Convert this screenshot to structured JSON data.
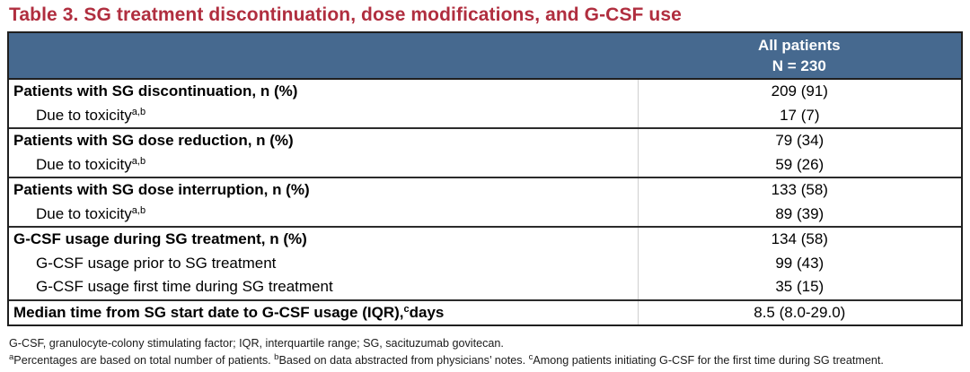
{
  "title": "Table 3. SG treatment discontinuation, dose modifications, and G-CSF use",
  "colors": {
    "title_accent": "#B02E3F",
    "header_background": "#46698F",
    "header_text": "#FFFFFF",
    "table_border": "#1F1F1F",
    "group_separator": "#2B2B2B",
    "column_divider": "#CFCFCF"
  },
  "table": {
    "header": {
      "line1": "All patients",
      "line2": "N = 230"
    },
    "groups": [
      {
        "rows": [
          {
            "bold": true,
            "indent": false,
            "label_parts": [
              {
                "t": "Patients with SG discontinuation, n (%)"
              }
            ],
            "value": "209 (91)"
          },
          {
            "bold": false,
            "indent": true,
            "label_parts": [
              {
                "t": "Due to toxicity"
              },
              {
                "t": "a,b",
                "sup": true
              }
            ],
            "value": "17 (7)"
          }
        ]
      },
      {
        "rows": [
          {
            "bold": true,
            "indent": false,
            "label_parts": [
              {
                "t": "Patients with SG dose reduction, n (%)"
              }
            ],
            "value": "79 (34)"
          },
          {
            "bold": false,
            "indent": true,
            "label_parts": [
              {
                "t": "Due to toxicity"
              },
              {
                "t": "a,b",
                "sup": true
              }
            ],
            "value": "59 (26)"
          }
        ]
      },
      {
        "rows": [
          {
            "bold": true,
            "indent": false,
            "label_parts": [
              {
                "t": "Patients with SG dose interruption, n (%)"
              }
            ],
            "value": "133 (58)"
          },
          {
            "bold": false,
            "indent": true,
            "label_parts": [
              {
                "t": "Due to toxicity"
              },
              {
                "t": "a,b",
                "sup": true
              }
            ],
            "value": "89 (39)"
          }
        ]
      },
      {
        "rows": [
          {
            "bold": true,
            "indent": false,
            "label_parts": [
              {
                "t": "G-CSF usage during SG treatment, n (%)"
              }
            ],
            "value": "134 (58)"
          },
          {
            "bold": false,
            "indent": true,
            "label_parts": [
              {
                "t": "G-CSF usage prior to SG treatment"
              }
            ],
            "value": "99 (43)"
          },
          {
            "bold": false,
            "indent": true,
            "label_parts": [
              {
                "t": "G-CSF usage first time during SG treatment"
              }
            ],
            "value": "35 (15)"
          }
        ]
      },
      {
        "rows": [
          {
            "bold": true,
            "indent": false,
            "label_parts": [
              {
                "t": "Median time from SG start date to G-CSF usage (IQR),"
              },
              {
                "t": "c",
                "sup": true
              },
              {
                "t": " days"
              }
            ],
            "value": "8.5 (8.0-29.0)"
          }
        ]
      }
    ]
  },
  "footnotes": [
    {
      "parts": [
        {
          "t": "G-CSF, granulocyte-colony stimulating factor; IQR, interquartile range; SG, sacituzumab govitecan."
        }
      ]
    },
    {
      "parts": [
        {
          "t": "a",
          "sup": true
        },
        {
          "t": "Percentages are based on total number of patients. "
        },
        {
          "t": "b",
          "sup": true
        },
        {
          "t": "Based on data abstracted from physicians’ notes. "
        },
        {
          "t": "c",
          "sup": true
        },
        {
          "t": "Among patients initiating G-CSF for the first time during SG treatment."
        }
      ]
    }
  ]
}
